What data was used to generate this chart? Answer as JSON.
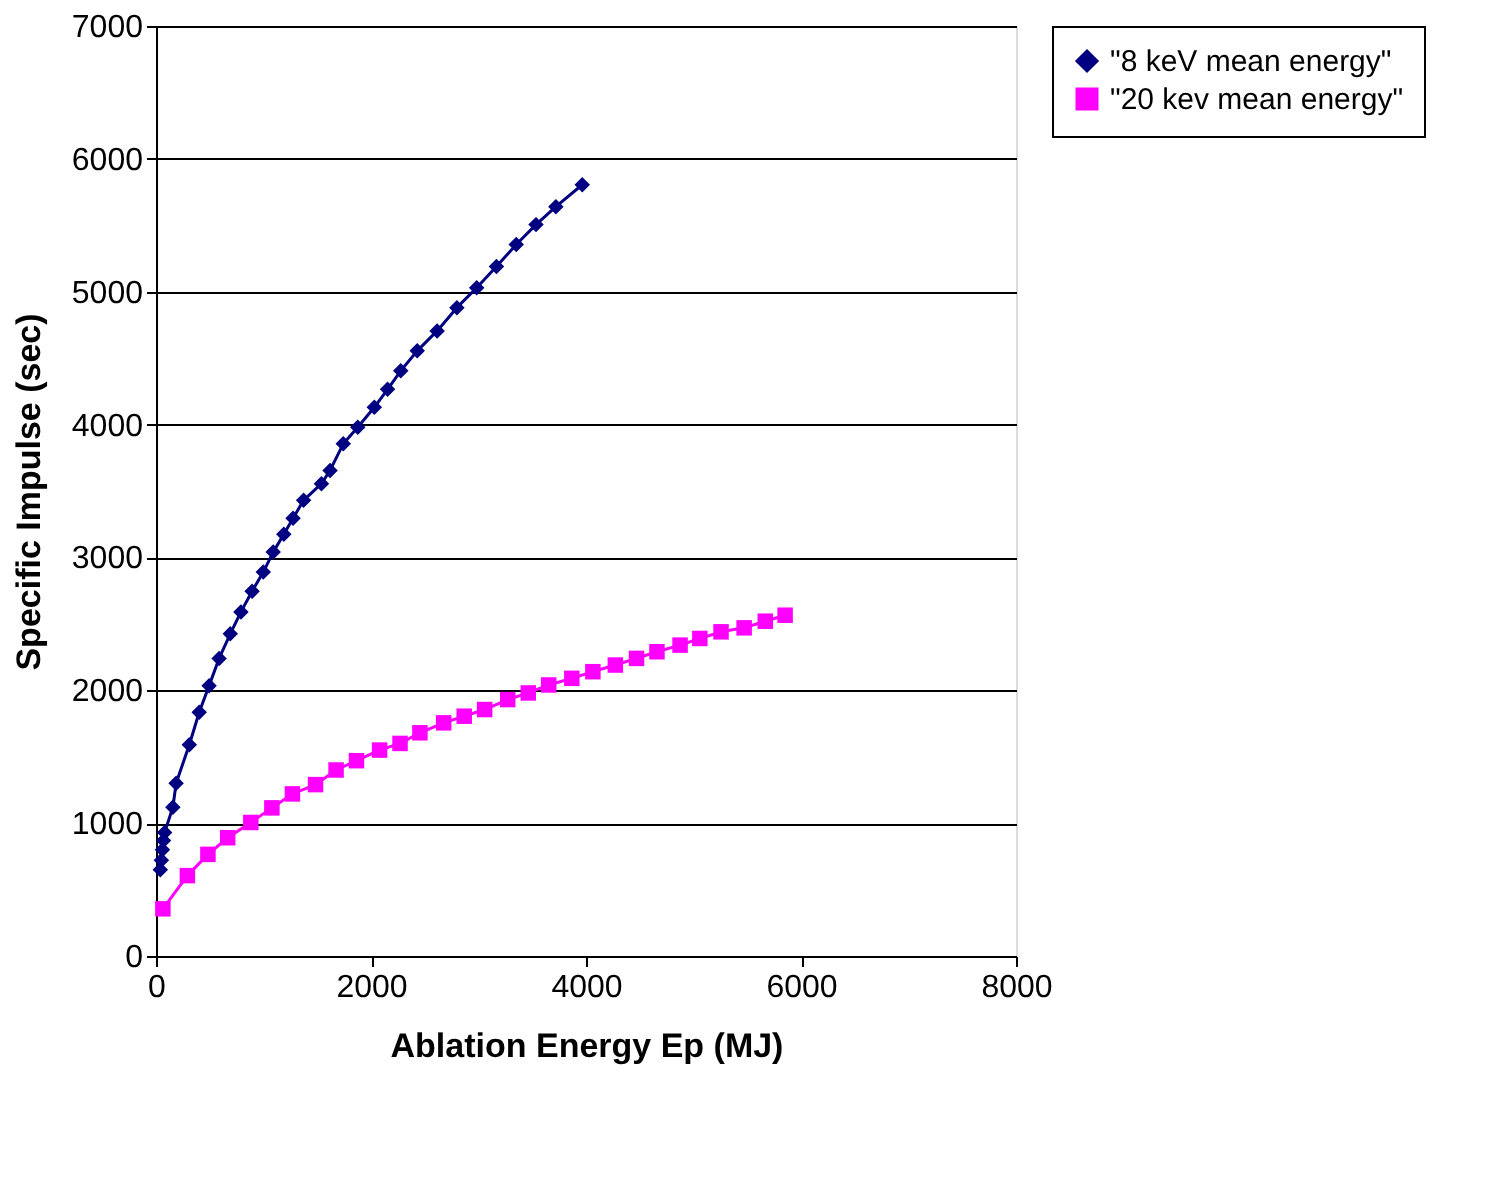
{
  "chart_data": {
    "type": "line",
    "xlabel": "Ablation Energy Ep (MJ)",
    "ylabel": "Specific Impulse (sec)",
    "xlim": [
      0,
      8000
    ],
    "xticks": [
      0,
      2000,
      4000,
      6000,
      8000
    ],
    "ylim": [
      0,
      7000
    ],
    "yticks": [
      0,
      1000,
      2000,
      3000,
      4000,
      5000,
      6000,
      7000
    ],
    "grid": "y",
    "legend": "right",
    "line_style": "solid",
    "series": [
      {
        "name": "\"8 keV mean energy\"",
        "color": "#000080",
        "marker": "diamond",
        "x": [
          40,
          50,
          60,
          70,
          80,
          157,
          187,
          310,
          402,
          494,
          587,
          691,
          790,
          894,
          998,
          1090,
          1189,
          1275,
          1373,
          1539,
          1619,
          1742,
          1877,
          2031,
          2154,
          2277,
          2430,
          2615,
          2799,
          2983,
          3167,
          3351,
          3535,
          3720,
          3965
        ],
        "values": [
          650,
          720,
          800,
          870,
          930,
          1120,
          1300,
          1590,
          1835,
          2035,
          2240,
          2425,
          2590,
          2745,
          2890,
          3040,
          3175,
          3295,
          3430,
          3555,
          3655,
          3855,
          3980,
          4130,
          4265,
          4405,
          4555,
          4705,
          4880,
          5030,
          5190,
          5355,
          5505,
          5640,
          5805
        ]
      },
      {
        "name": "\"20 kev mean energy\"",
        "color": "#ff00ff",
        "marker": "square",
        "x": [
          64,
          292,
          483,
          667,
          882,
          1078,
          1269,
          1484,
          1675,
          1865,
          2080,
          2270,
          2455,
          2676,
          2867,
          3057,
          3272,
          3463,
          3653,
          3868,
          4064,
          4273,
          4470,
          4660,
          4875,
          5059,
          5256,
          5471,
          5668,
          5852
        ],
        "values": [
          355,
          605,
          765,
          890,
          1005,
          1115,
          1220,
          1290,
          1400,
          1470,
          1550,
          1600,
          1680,
          1755,
          1805,
          1855,
          1930,
          1980,
          2040,
          2090,
          2140,
          2190,
          2240,
          2290,
          2340,
          2390,
          2440,
          2470,
          2520,
          2565
        ]
      }
    ]
  }
}
